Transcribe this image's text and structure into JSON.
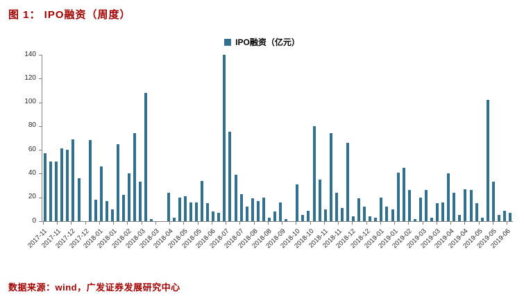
{
  "figure": {
    "title": "图  1：  IPO融资（周度）",
    "source": "数据来源：wind，广发证券发展研究中心"
  },
  "colors": {
    "accent_red": "#a00000",
    "bar": "#31708f",
    "axis": "#7f7f7f"
  },
  "chart_data": {
    "type": "bar",
    "title": "IPO融资（周度）",
    "legend": "IPO融资（亿元）",
    "ylabel": "",
    "xlabel": "",
    "ylim": [
      0,
      140
    ],
    "yticks": [
      0,
      20,
      40,
      60,
      80,
      100,
      120,
      140
    ],
    "grid": false,
    "legend_position": "top-center",
    "bar_color": "#31708f",
    "x_tick_labels": [
      "2017-11",
      "2017-11",
      "2017-12",
      "2017-12",
      "2018-01",
      "2018-01",
      "2018-02",
      "2018-03",
      "2018-03",
      "2018-04",
      "2018-05",
      "2018-05",
      "2018-06",
      "2018-07",
      "2018-07",
      "2018-08",
      "2018-08",
      "2018-09",
      "2018-10",
      "2018-10",
      "2018-11",
      "2018-11",
      "2018-12",
      "2018-12",
      "2019-01",
      "2019-01",
      "2019-02",
      "2019-03",
      "2019-03",
      "2019-04",
      "2019-04",
      "2019-05",
      "2019-05",
      "2019-06"
    ],
    "values": [
      57,
      50,
      50,
      61,
      60,
      69,
      36,
      0,
      68,
      18,
      46,
      17,
      10,
      65,
      22,
      40,
      74,
      33,
      108,
      2,
      0,
      0,
      24,
      3,
      20,
      21,
      16,
      16,
      34,
      15,
      8,
      7,
      140,
      75,
      39,
      23,
      12,
      19,
      17,
      20,
      3,
      8,
      16,
      2,
      0,
      31,
      5,
      9,
      80,
      35,
      10,
      74,
      24,
      11,
      66,
      4,
      19,
      12,
      4,
      3,
      20,
      12,
      10,
      41,
      45,
      26,
      2,
      20,
      26,
      3,
      15,
      16,
      40,
      24,
      5,
      27,
      26,
      15,
      3,
      102,
      33,
      5,
      9,
      7
    ]
  }
}
